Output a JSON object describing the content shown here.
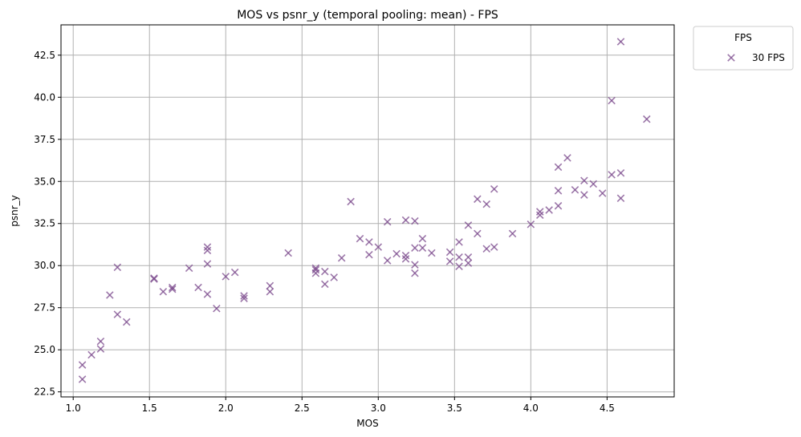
{
  "chart_data": {
    "type": "scatter",
    "title": "MOS vs psnr_y (temporal pooling: mean) - FPS",
    "xlabel": "MOS",
    "ylabel": "psnr_y",
    "xlim": [
      0.92,
      4.94
    ],
    "ylim": [
      22.2,
      44.3
    ],
    "xticks": [
      "1.0",
      "1.5",
      "2.0",
      "2.5",
      "3.0",
      "3.5",
      "4.0",
      "4.5"
    ],
    "yticks": [
      "22.5",
      "25.0",
      "27.5",
      "30.0",
      "32.5",
      "35.0",
      "37.5",
      "40.0",
      "42.5"
    ],
    "grid": true,
    "legend": {
      "title": "FPS",
      "position": "outside-top-right"
    },
    "marker": "x",
    "color": "#7b4a8c",
    "series": [
      {
        "name": "30 FPS",
        "points": [
          [
            1.06,
            23.25
          ],
          [
            1.06,
            24.1
          ],
          [
            1.12,
            24.7
          ],
          [
            1.18,
            25.05
          ],
          [
            1.18,
            25.5
          ],
          [
            1.24,
            28.25
          ],
          [
            1.29,
            29.9
          ],
          [
            1.29,
            27.1
          ],
          [
            1.35,
            26.65
          ],
          [
            1.53,
            29.2
          ],
          [
            1.53,
            29.25
          ],
          [
            1.59,
            28.45
          ],
          [
            1.65,
            28.7
          ],
          [
            1.65,
            28.6
          ],
          [
            1.76,
            29.85
          ],
          [
            1.82,
            28.7
          ],
          [
            1.88,
            31.1
          ],
          [
            1.88,
            30.9
          ],
          [
            1.88,
            30.1
          ],
          [
            1.88,
            28.3
          ],
          [
            1.94,
            27.45
          ],
          [
            2.0,
            29.35
          ],
          [
            2.06,
            29.6
          ],
          [
            2.12,
            28.2
          ],
          [
            2.12,
            28.05
          ],
          [
            2.29,
            28.8
          ],
          [
            2.29,
            28.45
          ],
          [
            2.41,
            30.75
          ],
          [
            2.59,
            29.85
          ],
          [
            2.59,
            29.75
          ],
          [
            2.59,
            29.55
          ],
          [
            2.65,
            29.65
          ],
          [
            2.65,
            28.9
          ],
          [
            2.71,
            29.3
          ],
          [
            2.76,
            30.45
          ],
          [
            2.82,
            33.8
          ],
          [
            2.88,
            31.6
          ],
          [
            2.94,
            31.4
          ],
          [
            2.94,
            30.65
          ],
          [
            3.0,
            31.1
          ],
          [
            3.06,
            32.6
          ],
          [
            3.06,
            30.3
          ],
          [
            3.12,
            30.7
          ],
          [
            3.18,
            32.7
          ],
          [
            3.18,
            30.6
          ],
          [
            3.18,
            30.4
          ],
          [
            3.24,
            32.65
          ],
          [
            3.24,
            31.05
          ],
          [
            3.24,
            30.05
          ],
          [
            3.24,
            29.55
          ],
          [
            3.29,
            31.6
          ],
          [
            3.29,
            31.05
          ],
          [
            3.35,
            30.75
          ],
          [
            3.47,
            30.8
          ],
          [
            3.47,
            30.25
          ],
          [
            3.53,
            31.4
          ],
          [
            3.53,
            30.5
          ],
          [
            3.53,
            29.95
          ],
          [
            3.59,
            32.4
          ],
          [
            3.59,
            30.5
          ],
          [
            3.59,
            30.15
          ],
          [
            3.65,
            33.95
          ],
          [
            3.65,
            31.9
          ],
          [
            3.71,
            33.65
          ],
          [
            3.71,
            31.0
          ],
          [
            3.76,
            34.55
          ],
          [
            3.76,
            31.1
          ],
          [
            3.88,
            31.9
          ],
          [
            4.0,
            32.45
          ],
          [
            4.06,
            33.2
          ],
          [
            4.06,
            33.0
          ],
          [
            4.12,
            33.3
          ],
          [
            4.18,
            35.85
          ],
          [
            4.18,
            34.45
          ],
          [
            4.18,
            33.55
          ],
          [
            4.24,
            36.4
          ],
          [
            4.29,
            34.5
          ],
          [
            4.35,
            35.05
          ],
          [
            4.35,
            34.2
          ],
          [
            4.41,
            34.85
          ],
          [
            4.47,
            34.3
          ],
          [
            4.53,
            39.8
          ],
          [
            4.53,
            35.4
          ],
          [
            4.59,
            43.3
          ],
          [
            4.59,
            35.5
          ],
          [
            4.59,
            34.0
          ],
          [
            4.76,
            38.7
          ]
        ]
      }
    ]
  }
}
